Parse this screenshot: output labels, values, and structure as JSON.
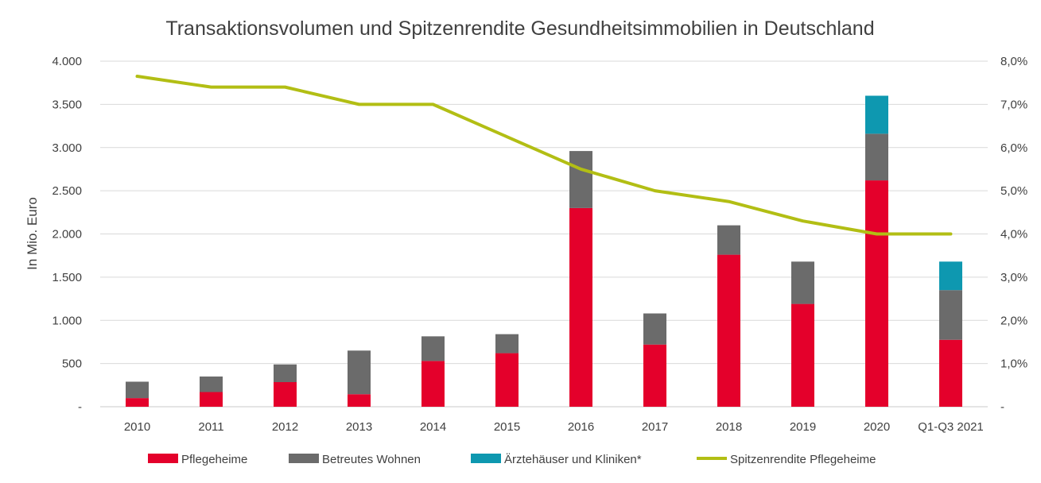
{
  "chart_data": {
    "type": "bar",
    "stacked": true,
    "title": "Transaktionsvolumen und Spitzenrendite Gesundheitsimmobilien in Deutschland",
    "ylabel": "In Mio. Euro",
    "categories": [
      "2010",
      "2011",
      "2012",
      "2013",
      "2014",
      "2015",
      "2016",
      "2017",
      "2018",
      "2019",
      "2020",
      "Q1-Q3 2021"
    ],
    "ylim": [
      0,
      4000
    ],
    "y_ticks": [
      0,
      500,
      1000,
      1500,
      2000,
      2500,
      3000,
      3500,
      4000
    ],
    "y_tick_labels": [
      "-",
      "500",
      "1.000",
      "1.500",
      "2.000",
      "2.500",
      "3.000",
      "3.500",
      "4.000"
    ],
    "y2lim": [
      0,
      8
    ],
    "y2_ticks": [
      0,
      1,
      2,
      3,
      4,
      5,
      6,
      7,
      8
    ],
    "y2_tick_labels": [
      "-",
      "1,0%",
      "2,0%",
      "3,0%",
      "4,0%",
      "5,0%",
      "6,0%",
      "7,0%",
      "8,0%"
    ],
    "grid": true,
    "legend_position": "bottom",
    "series": [
      {
        "name": "Pflegeheime",
        "kind": "bar",
        "color": "#e4002b",
        "values": [
          100,
          170,
          285,
          145,
          530,
          620,
          2300,
          720,
          1760,
          1190,
          2620,
          775
        ]
      },
      {
        "name": "Betreutes Wohnen",
        "kind": "bar",
        "color": "#6b6b6b",
        "values": [
          190,
          180,
          205,
          505,
          285,
          220,
          660,
          360,
          340,
          490,
          540,
          575
        ]
      },
      {
        "name": "Ärztehäuser und Kliniken*",
        "kind": "bar",
        "color": "#0e98b0",
        "values": [
          0,
          0,
          0,
          0,
          0,
          0,
          0,
          0,
          0,
          0,
          440,
          330
        ]
      },
      {
        "name": "Spitzenrendite Pflegeheime",
        "kind": "line",
        "axis": "right",
        "unit": "%",
        "color": "#b2be14",
        "values": [
          7.65,
          7.4,
          7.4,
          7.0,
          7.0,
          6.25,
          5.5,
          5.0,
          4.75,
          4.3,
          4.0,
          4.0
        ]
      }
    ]
  }
}
